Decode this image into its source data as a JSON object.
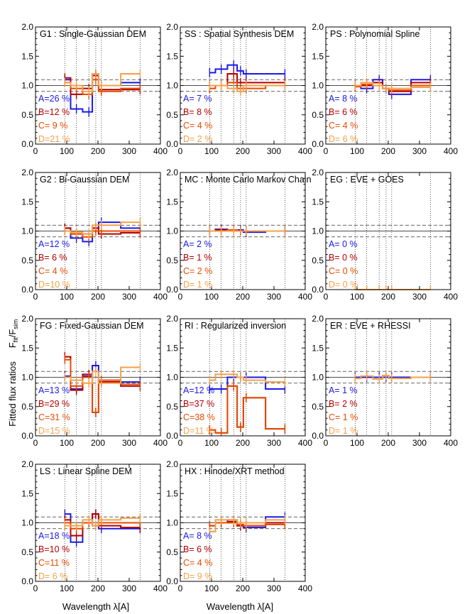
{
  "ylabel_main": "Fitted flux ratios",
  "ylabel_sup": "F",
  "ylabel_sub1": "fit",
  "ylabel_slash": "/F",
  "ylabel_sub2": "sim",
  "xlabel": "Wavelength  λ[A]",
  "colors": {
    "A": "#1a1ae6",
    "B": "#b40000",
    "C": "#e64b00",
    "D": "#f5a04a"
  },
  "chart_data": {
    "type": "line",
    "xlim": [
      0,
      400
    ],
    "ylim": [
      0,
      2.0
    ],
    "xticks": [
      0,
      100,
      200,
      300,
      400
    ],
    "yticks": [
      "0.0",
      "0.5",
      "1.0",
      "1.5",
      "2.0"
    ],
    "reference_lines": {
      "solid": 1.0,
      "dashed": [
        0.9,
        1.1
      ]
    },
    "wavelengths": [
      94,
      131,
      171,
      193,
      211,
      335
    ],
    "panels": [
      {
        "title": "G1 : Single-Gaussian DEM",
        "stats": [
          "A=26 %",
          "B=12 %",
          "C= 9 %",
          "D=21 %"
        ],
        "series": [
          {
            "key": "A",
            "y": [
              1.1,
              0.6,
              0.55,
              1.2,
              1.0,
              1.05
            ]
          },
          {
            "key": "B",
            "y": [
              1.13,
              0.85,
              0.95,
              1.17,
              0.93,
              0.93
            ]
          },
          {
            "key": "C",
            "y": [
              1.05,
              0.95,
              0.85,
              1.1,
              0.9,
              0.95
            ]
          },
          {
            "key": "D",
            "y": [
              1.05,
              1.0,
              0.9,
              1.2,
              1.0,
              1.2
            ]
          }
        ]
      },
      {
        "title": "SS : Spatial Synthesis DEM",
        "stats": [
          "A= 7 %",
          "B= 8 %",
          "C= 4 %",
          "D= 2 %"
        ],
        "series": [
          {
            "key": "A",
            "y": [
              1.22,
              1.28,
              1.35,
              1.25,
              1.2,
              1.2
            ]
          },
          {
            "key": "B",
            "y": [
              1.0,
              1.0,
              1.2,
              1.05,
              1.05,
              1.05
            ]
          },
          {
            "key": "C",
            "y": [
              0.95,
              1.0,
              1.05,
              0.95,
              0.95,
              1.0
            ]
          },
          {
            "key": "D",
            "y": [
              1.0,
              1.0,
              0.95,
              0.9,
              1.0,
              1.0
            ]
          }
        ]
      },
      {
        "title": "PS : Polynomial Spline",
        "stats": [
          "A= 8 %",
          "B= 6 %",
          "C= 4 %",
          "D= 6 %"
        ],
        "series": [
          {
            "key": "A",
            "y": [
              1.0,
              0.95,
              1.1,
              0.95,
              0.85,
              1.1
            ]
          },
          {
            "key": "B",
            "y": [
              1.0,
              1.0,
              1.05,
              0.95,
              0.9,
              1.05
            ]
          },
          {
            "key": "C",
            "y": [
              0.98,
              1.02,
              1.0,
              0.95,
              0.92,
              1.0
            ]
          },
          {
            "key": "D",
            "y": [
              1.0,
              1.05,
              1.0,
              0.95,
              0.95,
              0.97
            ]
          }
        ]
      },
      {
        "title": "G2 : Bi-Gaussian DEM",
        "stats": [
          "A=12 %",
          "B= 6 %",
          "C= 4 %",
          "D=10 %"
        ],
        "series": [
          {
            "key": "A",
            "y": [
              1.05,
              0.88,
              0.82,
              1.05,
              1.15,
              1.05
            ]
          },
          {
            "key": "B",
            "y": [
              1.05,
              0.95,
              0.95,
              1.05,
              0.95,
              0.97
            ]
          },
          {
            "key": "C",
            "y": [
              1.0,
              0.95,
              0.9,
              1.0,
              1.0,
              1.0
            ]
          },
          {
            "key": "D",
            "y": [
              1.0,
              0.98,
              0.95,
              1.1,
              1.1,
              1.15
            ]
          }
        ]
      },
      {
        "title": "MC : Monte Carlo Markov Chain",
        "stats": [
          "A= 2 %",
          "B= 1 %",
          "C= 2 %",
          "D= 1 %"
        ],
        "series": [
          {
            "key": "A",
            "y": [
              1.0,
              1.03,
              1.0,
              1.02,
              0.98,
              1.0
            ]
          },
          {
            "key": "B",
            "y": [
              1.0,
              1.02,
              1.0,
              1.0,
              1.0,
              1.0
            ]
          },
          {
            "key": "C",
            "y": [
              1.0,
              1.0,
              1.02,
              1.0,
              1.0,
              1.0
            ]
          },
          {
            "key": "D",
            "y": [
              1.0,
              1.0,
              1.0,
              1.0,
              1.0,
              1.0
            ]
          }
        ]
      },
      {
        "title": "EG : EVE + GOES",
        "stats": [
          "A= 0 %",
          "B= 0 %",
          "C= 0 %",
          "D= 0 %"
        ],
        "series": [
          {
            "key": "D",
            "y": [
              0.0,
              0.0,
              0.0,
              0.0,
              0.0,
              0.0
            ]
          }
        ]
      },
      {
        "title": "FG : Fixed-Gaussian DEM",
        "stats": [
          "A=13 %",
          "B=29 %",
          "C=31 %",
          "D=15 %"
        ],
        "series": [
          {
            "key": "A",
            "y": [
              1.02,
              0.8,
              1.02,
              1.2,
              0.92,
              0.92
            ]
          },
          {
            "key": "B",
            "y": [
              1.35,
              0.78,
              1.05,
              0.4,
              0.92,
              0.85
            ]
          },
          {
            "key": "C",
            "y": [
              1.3,
              0.85,
              1.0,
              0.4,
              0.95,
              0.88
            ]
          },
          {
            "key": "D",
            "y": [
              1.0,
              0.95,
              0.9,
              1.1,
              0.9,
              1.17
            ]
          }
        ]
      },
      {
        "title": "RI : Regularized inversion",
        "stats": [
          "A=12 %",
          "B=37 %",
          "C=38 %",
          "D=11 %"
        ],
        "series": [
          {
            "key": "A",
            "y": [
              0.8,
              0.8,
              1.0,
              1.0,
              1.0,
              0.8
            ]
          },
          {
            "key": "B",
            "y": [
              0.1,
              0.05,
              0.85,
              0.15,
              0.65,
              0.12
            ]
          },
          {
            "key": "C",
            "y": [
              0.1,
              0.05,
              0.85,
              0.15,
              0.65,
              0.12
            ]
          },
          {
            "key": "D",
            "y": [
              0.95,
              1.05,
              1.05,
              1.0,
              0.95,
              0.92
            ]
          }
        ]
      },
      {
        "title": "ER : EVE + RHESSI",
        "stats": [
          "A= 1 %",
          "B= 2 %",
          "C= 1 %",
          "D= 1 %"
        ],
        "series": [
          {
            "key": "A",
            "y": [
              1.0,
              1.0,
              1.0,
              1.0,
              1.0,
              1.0
            ]
          },
          {
            "key": "D",
            "y": [
              0.98,
              1.02,
              0.97,
              1.03,
              0.98,
              1.0
            ]
          }
        ]
      },
      {
        "title": "LS : Linear Spline DEM",
        "stats": [
          "A=18 %",
          "B=10 %",
          "C=11 %",
          "D= 6 %"
        ],
        "series": [
          {
            "key": "A",
            "y": [
              1.15,
              0.67,
              1.0,
              1.15,
              0.9,
              0.9
            ]
          },
          {
            "key": "B",
            "y": [
              1.05,
              0.78,
              1.0,
              1.15,
              0.95,
              0.92
            ]
          },
          {
            "key": "C",
            "y": [
              1.0,
              0.9,
              1.0,
              0.95,
              1.0,
              1.0
            ]
          },
          {
            "key": "D",
            "y": [
              0.95,
              0.95,
              1.05,
              0.95,
              1.05,
              1.08
            ]
          }
        ]
      },
      {
        "title": "HX : Hinode/XRT method",
        "stats": [
          "A= 8 %",
          "B= 6 %",
          "C= 4 %",
          "D= 9 %"
        ],
        "series": [
          {
            "key": "A",
            "y": [
              0.95,
              1.0,
              1.05,
              0.95,
              0.92,
              1.1
            ]
          },
          {
            "key": "B",
            "y": [
              0.95,
              1.0,
              1.02,
              0.95,
              0.95,
              1.0
            ]
          },
          {
            "key": "C",
            "y": [
              0.95,
              1.0,
              1.0,
              0.97,
              0.95,
              0.97
            ]
          },
          {
            "key": "D",
            "y": [
              0.85,
              1.05,
              1.05,
              1.0,
              1.0,
              1.05
            ]
          }
        ]
      }
    ]
  }
}
